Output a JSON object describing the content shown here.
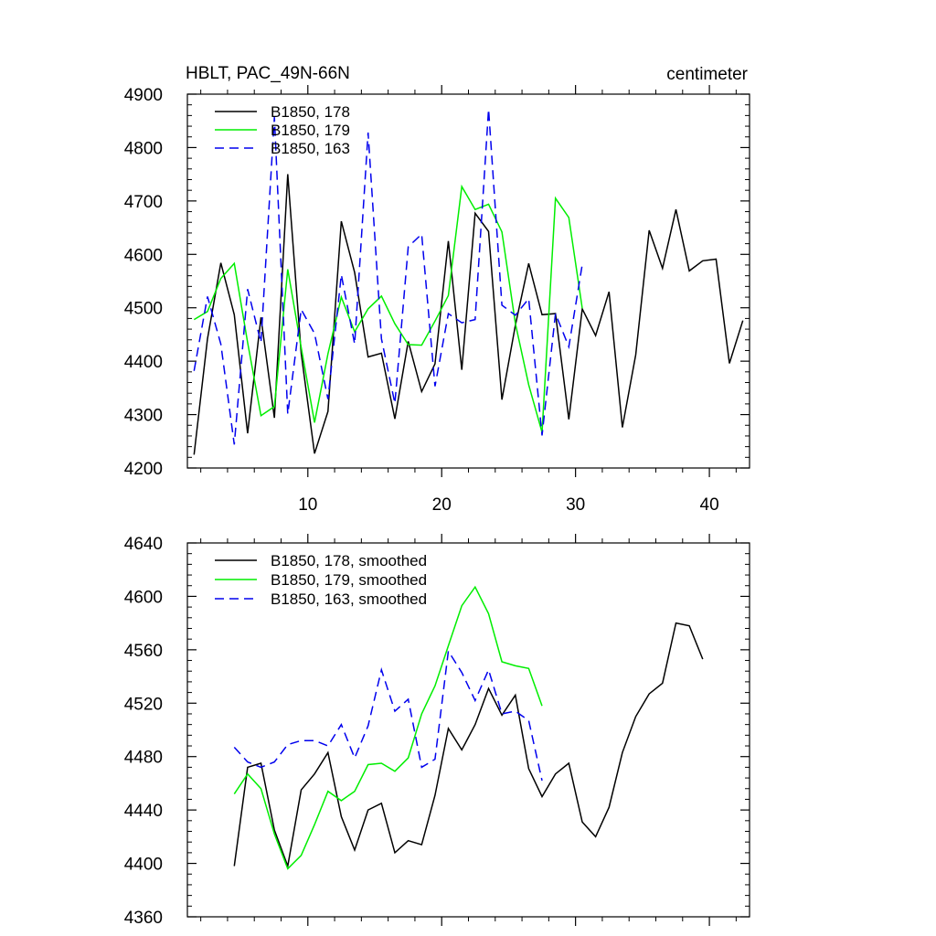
{
  "chart_data": [
    {
      "type": "line",
      "title": "HBLT, PAC_49N-66N",
      "units": "centimeter",
      "xlabel": "",
      "ylabel": "",
      "xlim": [
        1,
        43
      ],
      "ylim": [
        4200,
        4900
      ],
      "xticks": [
        10,
        20,
        30,
        40
      ],
      "yticks": [
        4200,
        4300,
        4400,
        4500,
        4600,
        4700,
        4800,
        4900
      ],
      "legend_position": "top-left",
      "series": [
        {
          "name": "B1850, 178",
          "color": "#000000",
          "dash": "solid",
          "x": [
            1.5,
            2.5,
            3.5,
            4.5,
            5.5,
            6.5,
            7.5,
            8.5,
            9.5,
            10.5,
            11.5,
            12.5,
            13.5,
            14.5,
            15.5,
            16.5,
            17.5,
            18.5,
            19.5,
            20.5,
            21.5,
            22.5,
            23.5,
            24.5,
            25.5,
            26.5,
            27.5,
            28.5,
            29.5,
            30.5,
            31.5,
            32.5,
            33.5,
            34.5,
            35.5,
            36.5,
            37.5,
            38.5,
            39.5,
            40.5,
            41.5,
            42.5
          ],
          "values": [
            4225,
            4442,
            4584,
            4487,
            4265,
            4482,
            4294,
            4750,
            4415,
            4227,
            4306,
            4662,
            4566,
            4408,
            4415,
            4292,
            4437,
            4343,
            4395,
            4625,
            4384,
            4677,
            4643,
            4328,
            4467,
            4583,
            4487,
            4489,
            4291,
            4498,
            4448,
            4530,
            4276,
            4412,
            4645,
            4574,
            4684,
            4569,
            4588,
            4591,
            4396,
            4476
          ]
        },
        {
          "name": "B1850, 179",
          "color": "#00ee00",
          "dash": "solid",
          "x": [
            1.5,
            2.5,
            3.5,
            4.5,
            5.5,
            6.5,
            7.5,
            8.5,
            9.5,
            10.5,
            11.5,
            12.5,
            13.5,
            14.5,
            15.5,
            16.5,
            17.5,
            18.5,
            19.5,
            20.5,
            21.5,
            22.5,
            23.5,
            24.5,
            25.5,
            26.5,
            27.5,
            28.5,
            29.5,
            30.5
          ],
          "values": [
            4478,
            4493,
            4555,
            4583,
            4435,
            4298,
            4315,
            4572,
            4426,
            4285,
            4414,
            4520,
            4455,
            4498,
            4522,
            4470,
            4431,
            4430,
            4475,
            4523,
            4727,
            4684,
            4694,
            4642,
            4471,
            4356,
            4267,
            4705,
            4669,
            4499
          ]
        },
        {
          "name": "B1850, 163",
          "color": "#0000ee",
          "dash": "dashed",
          "x": [
            1.5,
            2.5,
            3.5,
            4.5,
            5.5,
            6.5,
            7.5,
            8.5,
            9.5,
            10.5,
            11.5,
            12.5,
            13.5,
            14.5,
            15.5,
            16.5,
            17.5,
            18.5,
            19.5,
            20.5,
            21.5,
            22.5,
            23.5,
            24.5,
            25.5,
            26.5,
            27.5,
            28.5,
            29.5,
            30.5
          ],
          "values": [
            4382,
            4521,
            4432,
            4244,
            4535,
            4435,
            4857,
            4301,
            4497,
            4452,
            4329,
            4562,
            4432,
            4828,
            4442,
            4321,
            4614,
            4638,
            4353,
            4489,
            4472,
            4478,
            4872,
            4505,
            4486,
            4517,
            4261,
            4489,
            4427,
            4581
          ]
        }
      ]
    },
    {
      "type": "line",
      "title": "",
      "xlabel": "",
      "ylabel": "",
      "xlim": [
        1,
        43
      ],
      "ylim": [
        4360,
        4640
      ],
      "xticks": [
        10,
        20,
        30,
        40
      ],
      "yticks": [
        4360,
        4400,
        4440,
        4480,
        4520,
        4560,
        4600,
        4640
      ],
      "legend_position": "top-left",
      "series": [
        {
          "name": "B1850, 178, smoothed",
          "color": "#000000",
          "dash": "solid",
          "x": [
            4.5,
            5.5,
            6.5,
            7.5,
            8.5,
            9.5,
            10.5,
            11.5,
            12.5,
            13.5,
            14.5,
            15.5,
            16.5,
            17.5,
            18.5,
            19.5,
            20.5,
            21.5,
            22.5,
            23.5,
            24.5,
            25.5,
            26.5,
            27.5,
            28.5,
            29.5,
            30.5,
            31.5,
            32.5,
            33.5,
            34.5,
            35.5,
            36.5,
            37.5,
            38.5,
            39.5
          ],
          "values": [
            4398,
            4472,
            4475,
            4425,
            4398,
            4455,
            4467,
            4483,
            4435,
            4410,
            4440,
            4445,
            4408,
            4417,
            4414,
            4451,
            4501,
            4485,
            4504,
            4531,
            4511,
            4526,
            4471,
            4450,
            4467,
            4475,
            4431,
            4420,
            4442,
            4483,
            4510,
            4527,
            4535,
            4580,
            4578,
            4553
          ]
        },
        {
          "name": "B1850, 179, smoothed",
          "color": "#00ee00",
          "dash": "solid",
          "x": [
            4.5,
            5.5,
            6.5,
            7.5,
            8.5,
            9.5,
            10.5,
            11.5,
            12.5,
            13.5,
            14.5,
            15.5,
            16.5,
            17.5,
            18.5,
            19.5,
            20.5,
            21.5,
            22.5,
            23.5,
            24.5,
            25.5,
            26.5,
            27.5
          ],
          "values": [
            4452,
            4467,
            4456,
            4422,
            4396,
            4406,
            4429,
            4454,
            4447,
            4454,
            4474,
            4475,
            4469,
            4479,
            4512,
            4533,
            4563,
            4593,
            4607,
            4587,
            4551,
            4548,
            4546,
            4518
          ]
        },
        {
          "name": "B1850, 163, smoothed",
          "color": "#0000ee",
          "dash": "dashed",
          "x": [
            4.5,
            5.5,
            6.5,
            7.5,
            8.5,
            9.5,
            10.5,
            11.5,
            12.5,
            13.5,
            14.5,
            15.5,
            16.5,
            17.5,
            18.5,
            19.5,
            20.5,
            21.5,
            22.5,
            23.5,
            24.5,
            25.5,
            26.5,
            27.5
          ],
          "values": [
            4487,
            4476,
            4472,
            4476,
            4489,
            4492,
            4492,
            4488,
            4504,
            4479,
            4503,
            4545,
            4514,
            4523,
            4472,
            4478,
            4559,
            4543,
            4522,
            4545,
            4512,
            4514,
            4507,
            4462
          ]
        }
      ]
    }
  ]
}
